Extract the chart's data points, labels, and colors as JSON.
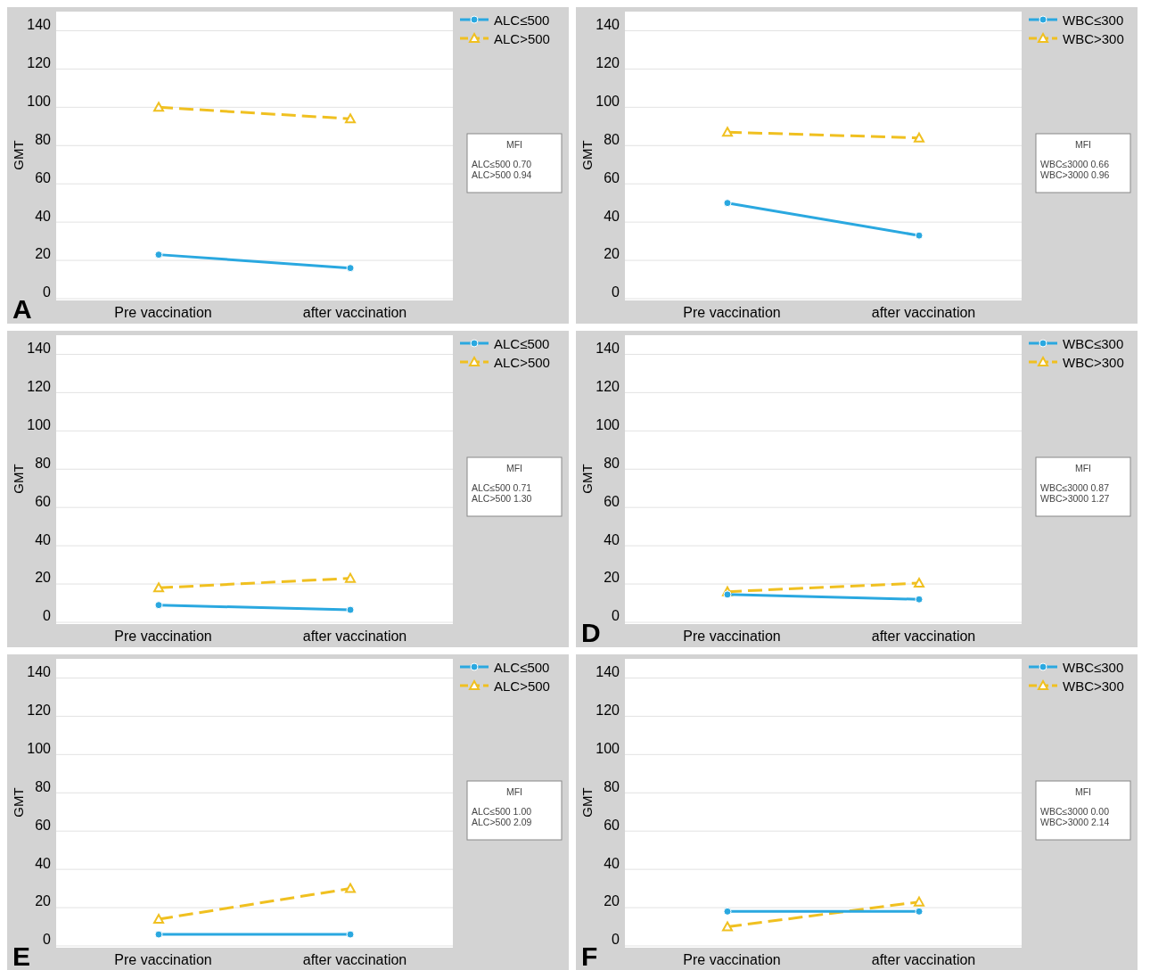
{
  "chart_data": [
    {
      "type": "line",
      "title": "A",
      "categories": [
        "Pre vaccination",
        "after vaccination"
      ],
      "ylabel": "GMT",
      "ylim": [
        0,
        150
      ],
      "yticks": [
        0,
        20,
        40,
        60,
        80,
        100,
        120,
        140
      ],
      "grid": "y",
      "legend": "top right",
      "annotations": [
        "MFI",
        "ALC≤500  0.70",
        "ALC>500  0.94"
      ],
      "series": [
        {
          "name": "ALC≤500",
          "color": "#2aa8e0",
          "values": [
            23,
            16
          ],
          "marker": "circle",
          "line_style": "solid"
        },
        {
          "name": "ALC>500",
          "color": "#f0c020",
          "values": [
            100,
            94
          ],
          "marker": "triangle",
          "line_style": "dashed"
        }
      ]
    },
    {
      "type": "line",
      "categories": [
        "Pre vaccination",
        "after vaccination"
      ],
      "ylabel": "GMT",
      "ylim": [
        0,
        150
      ],
      "yticks": [
        0,
        20,
        40,
        60,
        80,
        100,
        120,
        140
      ],
      "grid": "y",
      "legend": "top right",
      "annotations": [
        "MFI",
        "WBC≤3000  0.66",
        "WBC>3000  0.96"
      ],
      "series": [
        {
          "name": "WBC≤300",
          "color": "#2aa8e0",
          "values": [
            50,
            33
          ],
          "marker": "circle",
          "line_style": "solid"
        },
        {
          "name": "WBC>300",
          "color": "#f0c020",
          "values": [
            87,
            84
          ],
          "marker": "triangle",
          "line_style": "dashed"
        }
      ]
    },
    {
      "type": "line",
      "categories": [
        "Pre vaccination",
        "after vaccination"
      ],
      "ylabel": "GMT",
      "ylim": [
        0,
        150
      ],
      "yticks": [
        0,
        20,
        40,
        60,
        80,
        100,
        120,
        140
      ],
      "grid": "y",
      "legend": "top right",
      "annotations": [
        "MFI",
        "ALC≤500  0.71",
        "ALC>500  1.30"
      ],
      "series": [
        {
          "name": "ALC≤500",
          "color": "#2aa8e0",
          "values": [
            9,
            6.5
          ],
          "marker": "circle",
          "line_style": "solid"
        },
        {
          "name": "ALC>500",
          "color": "#f0c020",
          "values": [
            18,
            23
          ],
          "marker": "triangle",
          "line_style": "dashed"
        }
      ]
    },
    {
      "type": "line",
      "title": "D",
      "categories": [
        "Pre vaccination",
        "after vaccination"
      ],
      "ylabel": "GMT",
      "ylim": [
        0,
        150
      ],
      "yticks": [
        0,
        20,
        40,
        60,
        80,
        100,
        120,
        140
      ],
      "grid": "y",
      "legend": "top right",
      "annotations": [
        "MFI",
        "WBC≤3000  0.87",
        "WBC>3000  1.27"
      ],
      "series": [
        {
          "name": "WBC≤300",
          "color": "#2aa8e0",
          "values": [
            14.5,
            12
          ],
          "marker": "circle",
          "line_style": "solid"
        },
        {
          "name": "WBC>300",
          "color": "#f0c020",
          "values": [
            16,
            20.5
          ],
          "marker": "triangle",
          "line_style": "dashed"
        }
      ]
    },
    {
      "type": "line",
      "title": "E",
      "categories": [
        "Pre vaccination",
        "after vaccination"
      ],
      "ylabel": "GMT",
      "ylim": [
        0,
        150
      ],
      "yticks": [
        0,
        20,
        40,
        60,
        80,
        100,
        120,
        140
      ],
      "grid": "y",
      "legend": "top right",
      "annotations": [
        "MFI",
        "ALC≤500  1.00",
        "ALC>500  2.09"
      ],
      "series": [
        {
          "name": "ALC≤500",
          "color": "#2aa8e0",
          "values": [
            6,
            6
          ],
          "marker": "circle",
          "line_style": "solid"
        },
        {
          "name": "ALC>500",
          "color": "#f0c020",
          "values": [
            14,
            30
          ],
          "marker": "triangle",
          "line_style": "dashed"
        }
      ]
    },
    {
      "type": "line",
      "title": "F",
      "categories": [
        "Pre vaccination",
        "after vaccination"
      ],
      "ylabel": "GMT",
      "ylim": [
        0,
        150
      ],
      "yticks": [
        0,
        20,
        40,
        60,
        80,
        100,
        120,
        140
      ],
      "grid": "y",
      "legend": "top right",
      "annotations": [
        "MFI",
        "WBC≤3000  0.00",
        "WBC>3000  2.14"
      ],
      "series": [
        {
          "name": "WBC≤300",
          "color": "#2aa8e0",
          "values": [
            18,
            18
          ],
          "marker": "circle",
          "line_style": "solid"
        },
        {
          "name": "WBC>300",
          "color": "#f0c020",
          "values": [
            10,
            23
          ],
          "marker": "triangle",
          "line_style": "dashed"
        }
      ]
    }
  ]
}
